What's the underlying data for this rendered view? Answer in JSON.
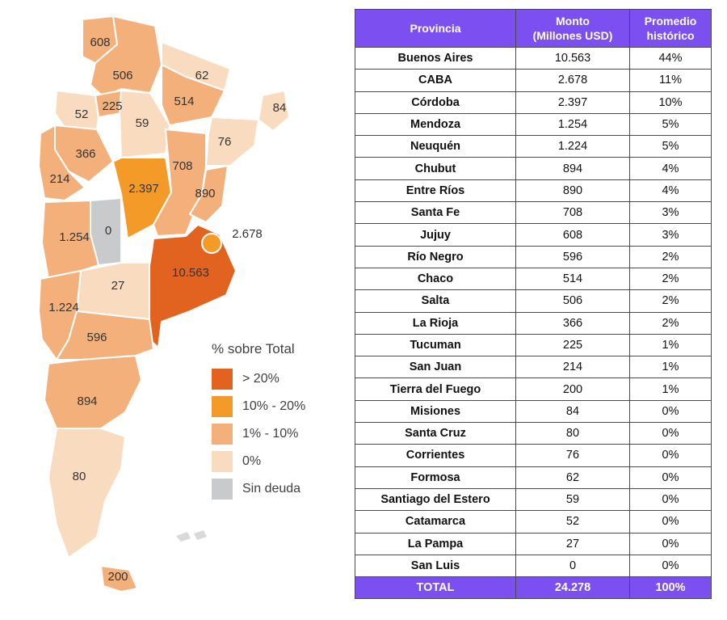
{
  "chart_data": [
    {
      "type": "table",
      "headers": [
        [
          "Provincia"
        ],
        [
          "Monto",
          "(Millones USD)"
        ],
        [
          "Promedio",
          "histórico"
        ]
      ],
      "rows": [
        [
          "Buenos Aires",
          "10.563",
          "44%"
        ],
        [
          "CABA",
          "2.678",
          "11%"
        ],
        [
          "Córdoba",
          "2.397",
          "10%"
        ],
        [
          "Mendoza",
          "1.254",
          "5%"
        ],
        [
          "Neuquén",
          "1.224",
          "5%"
        ],
        [
          "Chubut",
          "894",
          "4%"
        ],
        [
          "Entre Ríos",
          "890",
          "4%"
        ],
        [
          "Santa Fe",
          "708",
          "3%"
        ],
        [
          "Jujuy",
          "608",
          "3%"
        ],
        [
          "Río Negro",
          "596",
          "2%"
        ],
        [
          "Chaco",
          "514",
          "2%"
        ],
        [
          "Salta",
          "506",
          "2%"
        ],
        [
          "La Rioja",
          "366",
          "2%"
        ],
        [
          "Tucuman",
          "225",
          "1%"
        ],
        [
          "San Juan",
          "214",
          "1%"
        ],
        [
          "Tierra del Fuego",
          "200",
          "1%"
        ],
        [
          "Misiones",
          "84",
          "0%"
        ],
        [
          "Santa Cruz",
          "80",
          "0%"
        ],
        [
          "Corrientes",
          "76",
          "0%"
        ],
        [
          "Formosa",
          "62",
          "0%"
        ],
        [
          "Santiago del Estero",
          "59",
          "0%"
        ],
        [
          "Catamarca",
          "52",
          "0%"
        ],
        [
          "La Pampa",
          "27",
          "0%"
        ],
        [
          "San Luis",
          "0",
          "0%"
        ]
      ],
      "total": [
        "TOTAL",
        "24.278",
        "100%"
      ]
    },
    {
      "type": "choropleth",
      "legend_title": "% sobre Total",
      "legend": [
        {
          "label": "> 20%",
          "color": "#e2631f"
        },
        {
          "label": "10% - 20%",
          "color": "#f39a28"
        },
        {
          "label": "1% - 10%",
          "color": "#f3b07a"
        },
        {
          "label": "0%",
          "color": "#f9dcc0"
        },
        {
          "label": "Sin deuda",
          "color": "#c9cacc"
        }
      ],
      "regions": [
        {
          "province": "Jujuy",
          "label": "608",
          "class": 2
        },
        {
          "province": "Salta",
          "label": "506",
          "class": 2
        },
        {
          "province": "Formosa",
          "label": "62",
          "class": 3
        },
        {
          "province": "Misiones",
          "label": "84",
          "class": 3
        },
        {
          "province": "Chaco",
          "label": "514",
          "class": 2
        },
        {
          "province": "Tucuman",
          "label": "225",
          "class": 2
        },
        {
          "province": "Catamarca",
          "label": "52",
          "class": 3
        },
        {
          "province": "Santiago del Estero",
          "label": "59",
          "class": 3
        },
        {
          "province": "Corrientes",
          "label": "76",
          "class": 3
        },
        {
          "province": "La Rioja",
          "label": "366",
          "class": 2
        },
        {
          "province": "San Juan",
          "label": "214",
          "class": 2
        },
        {
          "province": "Córdoba",
          "label": "2.397",
          "class": 1
        },
        {
          "province": "Santa Fe",
          "label": "708",
          "class": 2
        },
        {
          "province": "Entre Ríos",
          "label": "890",
          "class": 2
        },
        {
          "province": "San Luis",
          "label": "0",
          "class": 4
        },
        {
          "province": "Mendoza",
          "label": "1.254",
          "class": 2
        },
        {
          "province": "Buenos Aires",
          "label": "10.563",
          "class": 0
        },
        {
          "province": "CABA",
          "label": "2.678",
          "class": 1
        },
        {
          "province": "La Pampa",
          "label": "27",
          "class": 3
        },
        {
          "province": "Neuquén",
          "label": "1.224",
          "class": 2
        },
        {
          "province": "Río Negro",
          "label": "596",
          "class": 2
        },
        {
          "province": "Chubut",
          "label": "894",
          "class": 2
        },
        {
          "province": "Santa Cruz",
          "label": "80",
          "class": 3
        },
        {
          "province": "Tierra del Fuego",
          "label": "200",
          "class": 2
        }
      ]
    }
  ]
}
